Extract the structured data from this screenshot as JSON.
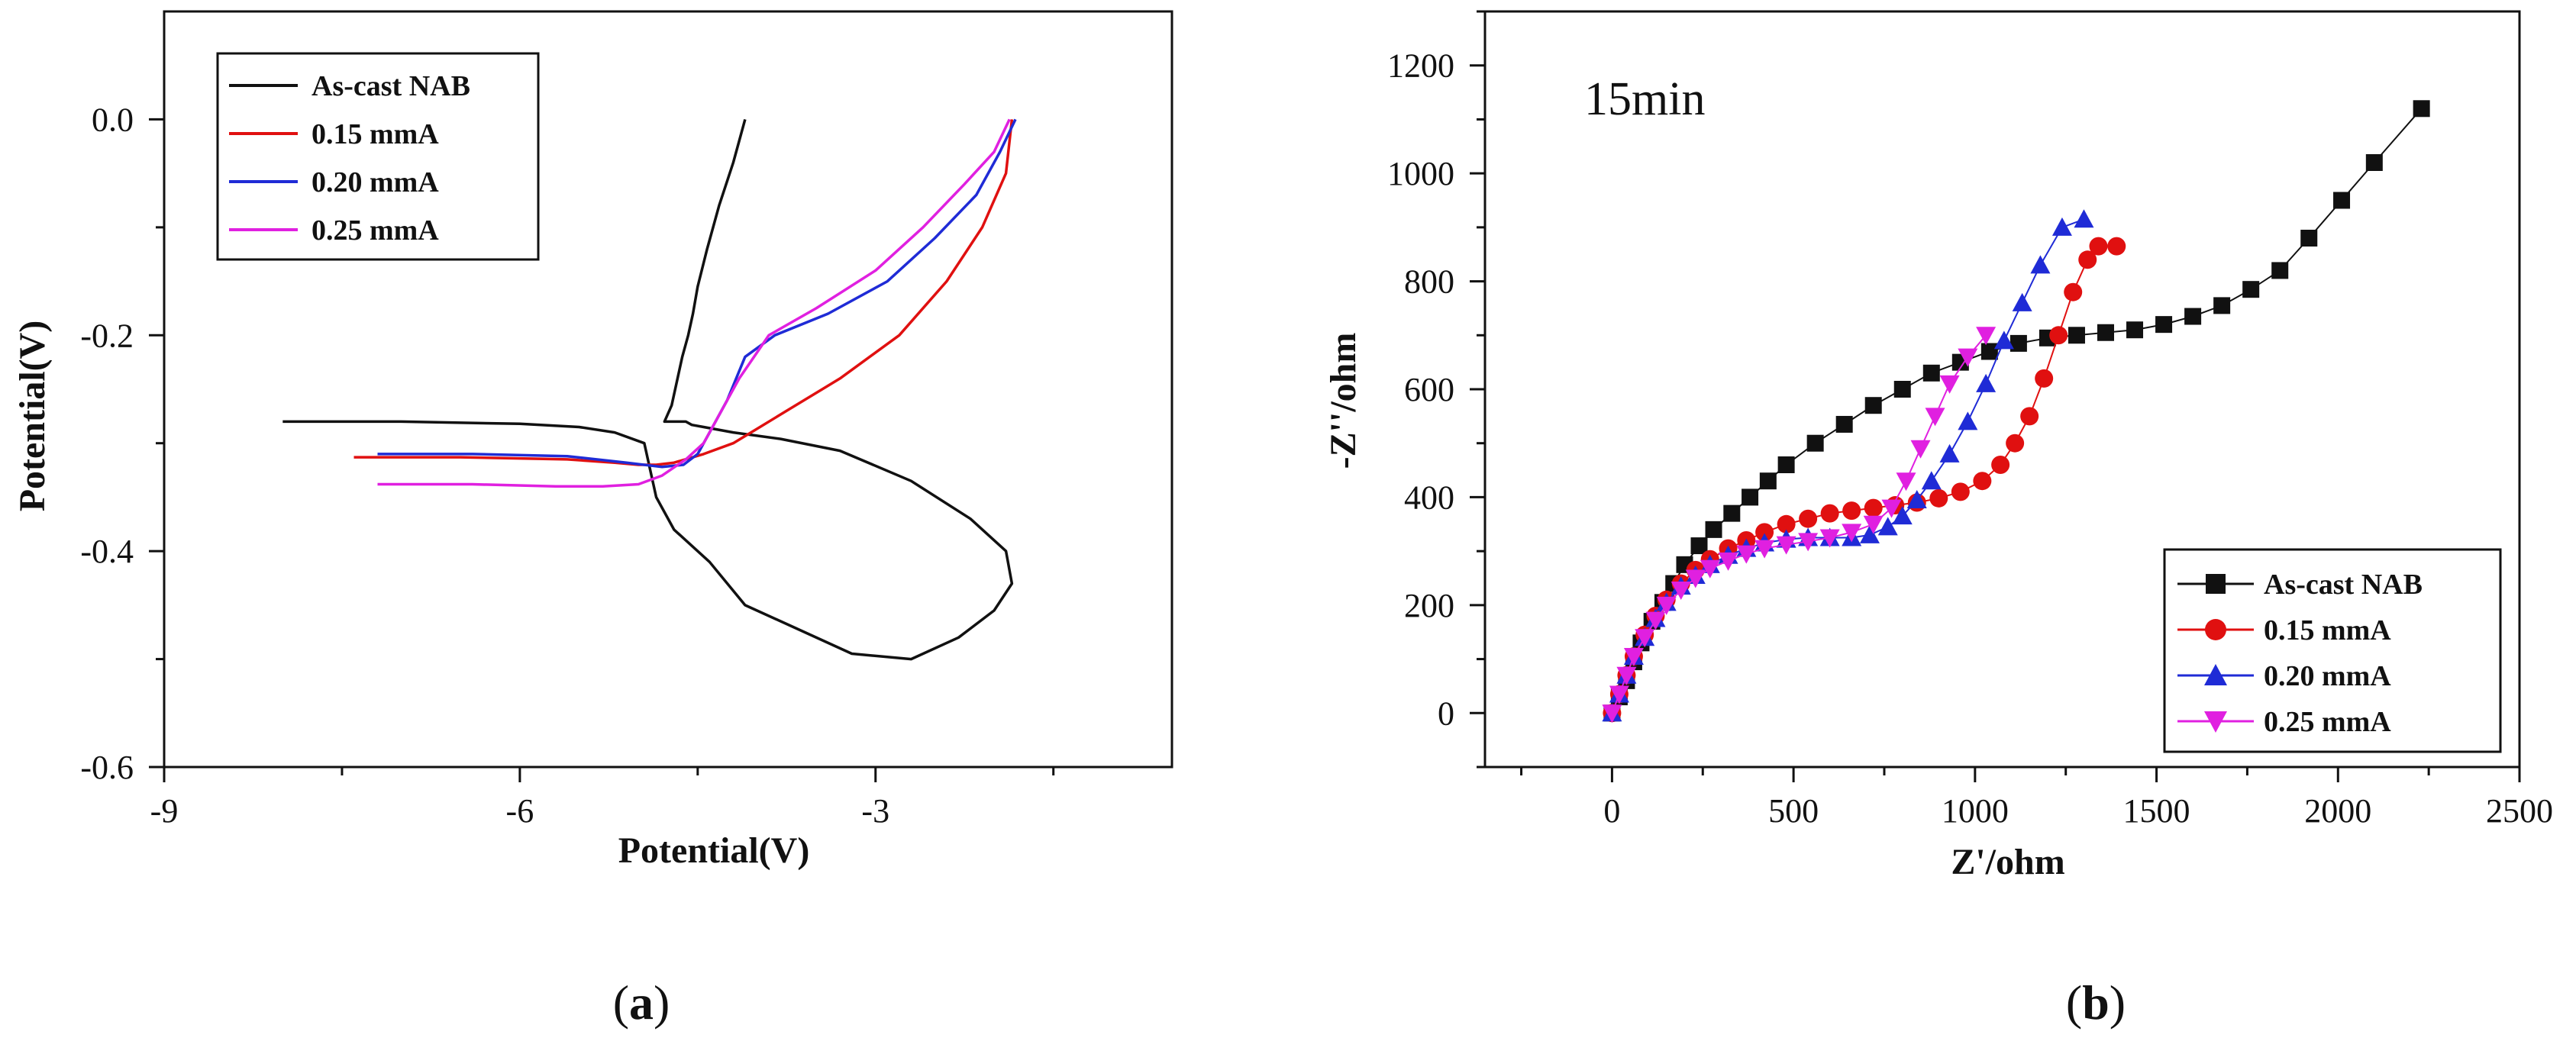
{
  "panels": [
    {
      "label": "(a)",
      "label_letter": "a",
      "chart_data": {
        "type": "line",
        "title": "",
        "xlabel": "Potential(V)",
        "ylabel": "Potential(V)",
        "xlim": [
          -9,
          -0.5
        ],
        "ylim": [
          -0.6,
          0.1
        ],
        "xticks": [
          -9,
          -6,
          -3
        ],
        "yticks": [
          0.0,
          -0.2,
          -0.4,
          -0.6
        ],
        "xtick_labels": [
          "-9",
          "-6",
          "-3"
        ],
        "ytick_labels": [
          "0.0",
          "-0.2",
          "-0.4",
          "-0.6"
        ],
        "legend_position": "top-left",
        "series": [
          {
            "name": "As-cast NAB",
            "color": "#111111",
            "x": [
              -8.0,
              -7.0,
              -6.0,
              -5.5,
              -5.2,
              -4.95,
              -4.85,
              -4.7,
              -4.4,
              -4.1,
              -3.7,
              -3.2,
              -2.7,
              -2.3,
              -2.0,
              -1.85,
              -1.9,
              -2.2,
              -2.7,
              -3.3,
              -3.8,
              -4.2,
              -4.45,
              -4.55,
              -4.6,
              -4.63,
              -4.65,
              -4.7,
              -4.75,
              -4.78,
              -4.76,
              -4.72,
              -4.68,
              -4.63,
              -4.58,
              -4.54,
              -4.5,
              -4.42,
              -4.32,
              -4.2,
              -4.1
            ],
            "y": [
              -0.28,
              -0.28,
              -0.282,
              -0.285,
              -0.29,
              -0.3,
              -0.35,
              -0.38,
              -0.41,
              -0.45,
              -0.47,
              -0.495,
              -0.5,
              -0.48,
              -0.455,
              -0.43,
              -0.4,
              -0.37,
              -0.335,
              -0.307,
              -0.296,
              -0.29,
              -0.285,
              -0.283,
              -0.28,
              -0.28,
              -0.28,
              -0.28,
              -0.28,
              -0.28,
              -0.275,
              -0.265,
              -0.245,
              -0.22,
              -0.2,
              -0.18,
              -0.155,
              -0.12,
              -0.08,
              -0.04,
              0.0
            ]
          },
          {
            "name": "0.15 mmA",
            "color": "#e01010",
            "x": [
              -7.4,
              -6.5,
              -5.6,
              -5.2,
              -5.0,
              -4.85,
              -4.7,
              -4.45,
              -4.2,
              -4.05,
              -3.75,
              -3.3,
              -2.8,
              -2.4,
              -2.1,
              -1.9,
              -1.85
            ],
            "y": [
              -0.313,
              -0.313,
              -0.315,
              -0.318,
              -0.32,
              -0.32,
              -0.318,
              -0.31,
              -0.3,
              -0.29,
              -0.27,
              -0.24,
              -0.2,
              -0.15,
              -0.1,
              -0.05,
              0.0
            ]
          },
          {
            "name": "0.20 mmA",
            "color": "#1f2bd6",
            "x": [
              -7.2,
              -6.4,
              -5.6,
              -5.1,
              -4.8,
              -4.62,
              -4.5,
              -4.4,
              -4.25,
              -4.1,
              -3.85,
              -3.4,
              -2.9,
              -2.5,
              -2.15,
              -1.95,
              -1.82
            ],
            "y": [
              -0.31,
              -0.31,
              -0.312,
              -0.318,
              -0.322,
              -0.32,
              -0.31,
              -0.29,
              -0.26,
              -0.22,
              -0.2,
              -0.18,
              -0.15,
              -0.11,
              -0.07,
              -0.03,
              0.0
            ]
          },
          {
            "name": "0.25 mmA",
            "color": "#e020e0",
            "x": [
              -7.2,
              -6.4,
              -5.7,
              -5.3,
              -5.0,
              -4.8,
              -4.6,
              -4.45,
              -4.3,
              -4.15,
              -3.9,
              -3.5,
              -3.0,
              -2.6,
              -2.25,
              -2.0,
              -1.87
            ],
            "y": [
              -0.338,
              -0.338,
              -0.34,
              -0.34,
              -0.338,
              -0.33,
              -0.315,
              -0.3,
              -0.27,
              -0.24,
              -0.2,
              -0.175,
              -0.14,
              -0.1,
              -0.06,
              -0.03,
              0.0
            ]
          }
        ]
      }
    },
    {
      "label": "(b)",
      "label_letter": "b",
      "annotation": "15min",
      "chart_data": {
        "type": "scatter",
        "title": "",
        "xlabel": "Z'/ohm",
        "ylabel": "-Z''/ohm",
        "xlim": [
          -350,
          2500
        ],
        "ylim": [
          -100,
          1300
        ],
        "xticks": [
          0,
          500,
          1000,
          1500,
          2000,
          2500
        ],
        "yticks": [
          0,
          200,
          400,
          600,
          800,
          1000,
          1200
        ],
        "xtick_labels": [
          "0",
          "500",
          "1000",
          "1500",
          "2000",
          "2500"
        ],
        "ytick_labels": [
          "0",
          "200",
          "400",
          "600",
          "800",
          "1000",
          "1200"
        ],
        "legend_position": "bottom-right",
        "series": [
          {
            "name": "As-cast NAB",
            "color": "#111111",
            "marker": "square",
            "x": [
              0,
              20,
              40,
              60,
              80,
              110,
              140,
              170,
              200,
              240,
              280,
              330,
              380,
              430,
              480,
              560,
              640,
              720,
              800,
              880,
              960,
              1040,
              1120,
              1200,
              1280,
              1360,
              1440,
              1520,
              1600,
              1680,
              1760,
              1840,
              1920,
              2010,
              2100,
              2230
            ],
            "y": [
              0,
              30,
              60,
              95,
              130,
              170,
              205,
              240,
              275,
              310,
              340,
              370,
              400,
              430,
              460,
              500,
              535,
              570,
              600,
              630,
              650,
              670,
              685,
              695,
              700,
              705,
              710,
              720,
              735,
              755,
              785,
              820,
              880,
              950,
              1020,
              1120
            ]
          },
          {
            "name": "0.15 mmA",
            "color": "#e01010",
            "marker": "circle",
            "x": [
              0,
              20,
              40,
              60,
              90,
              120,
              150,
              190,
              230,
              270,
              320,
              370,
              420,
              480,
              540,
              600,
              660,
              720,
              780,
              840,
              900,
              960,
              1020,
              1070,
              1110,
              1150,
              1190,
              1230,
              1270,
              1310,
              1340,
              1390
            ],
            "y": [
              0,
              35,
              70,
              105,
              145,
              180,
              210,
              240,
              265,
              285,
              305,
              320,
              335,
              350,
              360,
              370,
              375,
              380,
              385,
              390,
              398,
              410,
              430,
              460,
              500,
              550,
              620,
              700,
              780,
              840,
              865,
              865
            ]
          },
          {
            "name": "0.20 mmA",
            "color": "#1f2bd6",
            "marker": "triangle-up",
            "x": [
              0,
              20,
              40,
              60,
              90,
              120,
              150,
              190,
              230,
              270,
              320,
              370,
              420,
              480,
              540,
              600,
              660,
              710,
              760,
              800,
              840,
              880,
              930,
              980,
              1030,
              1080,
              1130,
              1180,
              1240,
              1300
            ],
            "y": [
              0,
              35,
              70,
              105,
              140,
              175,
              205,
              235,
              255,
              275,
              292,
              305,
              315,
              322,
              325,
              325,
              325,
              330,
              345,
              365,
              395,
              430,
              480,
              540,
              610,
              690,
              760,
              830,
              900,
              915
            ]
          },
          {
            "name": "0.25 mmA",
            "color": "#e020e0",
            "marker": "triangle-down",
            "x": [
              0,
              20,
              40,
              60,
              90,
              120,
              150,
              190,
              230,
              270,
              320,
              370,
              420,
              480,
              540,
              600,
              660,
              720,
              770,
              810,
              850,
              890,
              930,
              980,
              1030
            ],
            "y": [
              0,
              35,
              70,
              105,
              140,
              172,
              200,
              228,
              250,
              268,
              282,
              295,
              305,
              312,
              318,
              325,
              335,
              350,
              380,
              430,
              490,
              550,
              610,
              660,
              700
            ]
          }
        ]
      }
    }
  ]
}
